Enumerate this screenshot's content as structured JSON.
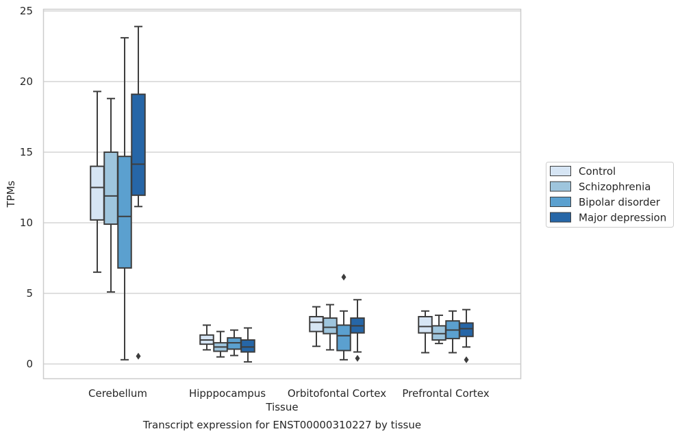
{
  "chart_data": {
    "type": "box",
    "title": "",
    "caption": "Transcript expression for ENST00000310227 by tissue",
    "xlabel": "Tissue",
    "ylabel": "TPMs",
    "ylim": [
      -1,
      25.2
    ],
    "yticks": [
      0,
      5,
      10,
      15,
      20,
      25
    ],
    "grid": "horizontal",
    "legend_position": "right",
    "categories": [
      "Cerebellum",
      "Hipppocampus",
      "Orbitofontal Cortex",
      "Prefrontal Cortex"
    ],
    "series": [
      {
        "name": "Control",
        "color": "#d6e5f4",
        "boxes": [
          {
            "whislo": 6.5,
            "q1": 10.2,
            "med": 12.5,
            "q3": 14.0,
            "whishi": 19.3,
            "fliers": []
          },
          {
            "whislo": 1.0,
            "q1": 1.4,
            "med": 1.7,
            "q3": 2.05,
            "whishi": 2.75,
            "fliers": []
          },
          {
            "whislo": 1.25,
            "q1": 2.3,
            "med": 2.95,
            "q3": 3.35,
            "whishi": 4.05,
            "fliers": []
          },
          {
            "whislo": 0.8,
            "q1": 2.2,
            "med": 2.65,
            "q3": 3.35,
            "whishi": 3.75,
            "fliers": []
          }
        ]
      },
      {
        "name": "Schizophrenia",
        "color": "#9ec5dd",
        "boxes": [
          {
            "whislo": 5.1,
            "q1": 9.9,
            "med": 11.9,
            "q3": 15.0,
            "whishi": 18.8,
            "fliers": []
          },
          {
            "whislo": 0.5,
            "q1": 0.9,
            "med": 1.2,
            "q3": 1.5,
            "whishi": 2.3,
            "fliers": []
          },
          {
            "whislo": 1.0,
            "q1": 2.15,
            "med": 2.6,
            "q3": 3.25,
            "whishi": 4.2,
            "fliers": []
          },
          {
            "whislo": 1.45,
            "q1": 1.7,
            "med": 2.15,
            "q3": 2.7,
            "whishi": 3.45,
            "fliers": []
          }
        ]
      },
      {
        "name": "Bipolar disorder",
        "color": "#5ba0cf",
        "boxes": [
          {
            "whislo": 0.3,
            "q1": 6.8,
            "med": 10.45,
            "q3": 14.7,
            "whishi": 23.1,
            "fliers": []
          },
          {
            "whislo": 0.6,
            "q1": 1.05,
            "med": 1.5,
            "q3": 1.85,
            "whishi": 2.4,
            "fliers": []
          },
          {
            "whislo": 0.3,
            "q1": 0.95,
            "med": 2.0,
            "q3": 2.75,
            "whishi": 3.75,
            "fliers": [
              6.15
            ]
          },
          {
            "whislo": 0.8,
            "q1": 1.8,
            "med": 2.4,
            "q3": 3.05,
            "whishi": 3.75,
            "fliers": []
          }
        ]
      },
      {
        "name": "Major depression",
        "color": "#2666a7",
        "boxes": [
          {
            "whislo": 11.15,
            "q1": 11.95,
            "med": 14.15,
            "q3": 19.1,
            "whishi": 23.9,
            "fliers": [
              0.55
            ]
          },
          {
            "whislo": 0.15,
            "q1": 0.85,
            "med": 1.2,
            "q3": 1.7,
            "whishi": 2.55,
            "fliers": []
          },
          {
            "whislo": 0.85,
            "q1": 2.2,
            "med": 2.7,
            "q3": 3.25,
            "whishi": 4.55,
            "fliers": [
              0.4
            ]
          },
          {
            "whislo": 1.2,
            "q1": 1.95,
            "med": 2.5,
            "q3": 2.9,
            "whishi": 3.85,
            "fliers": [
              0.3
            ]
          }
        ]
      }
    ]
  }
}
